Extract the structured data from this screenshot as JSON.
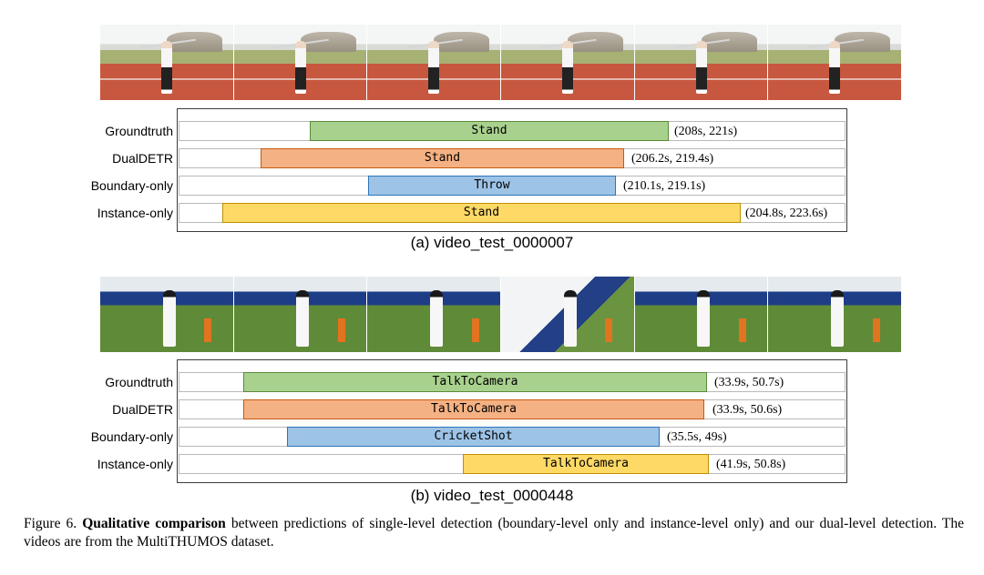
{
  "figure": {
    "label": "Figure 6.",
    "title": "Qualitative comparison",
    "text": " between predictions of single-level detection (boundary-level only and instance-level only) and our dual-level detection. The videos are from the MultiTHUMOS dataset."
  },
  "panels": [
    {
      "caption": "(a) video_test_0000007",
      "rows": [
        {
          "method": "Groundtruth",
          "label": "Stand",
          "range": "(208s, 221s)",
          "color": "#a9d18e"
        },
        {
          "method": "DualDETR",
          "label": "Stand",
          "range": "(206.2s, 219.4s)",
          "color": "#f4b183"
        },
        {
          "method": "Boundary-only",
          "label": "Throw",
          "range": "(210.1s, 219.1s)",
          "color": "#9dc3e6"
        },
        {
          "method": "Instance-only",
          "label": "Stand",
          "range": "(204.8s, 223.6s)",
          "color": "#ffd966"
        }
      ]
    },
    {
      "caption": "(b) video_test_0000448",
      "rows": [
        {
          "method": "Groundtruth",
          "label": "TalkToCamera",
          "range": "(33.9s, 50.7s)",
          "color": "#a9d18e"
        },
        {
          "method": "DualDETR",
          "label": "TalkToCamera",
          "range": "(33.9s, 50.6s)",
          "color": "#f4b183"
        },
        {
          "method": "Boundary-only",
          "label": "CricketShot",
          "range": "(35.5s, 49s)",
          "color": "#9dc3e6"
        },
        {
          "method": "Instance-only",
          "label": "TalkToCamera",
          "range": "(41.9s, 50.8s)",
          "color": "#ffd966"
        }
      ]
    }
  ]
}
